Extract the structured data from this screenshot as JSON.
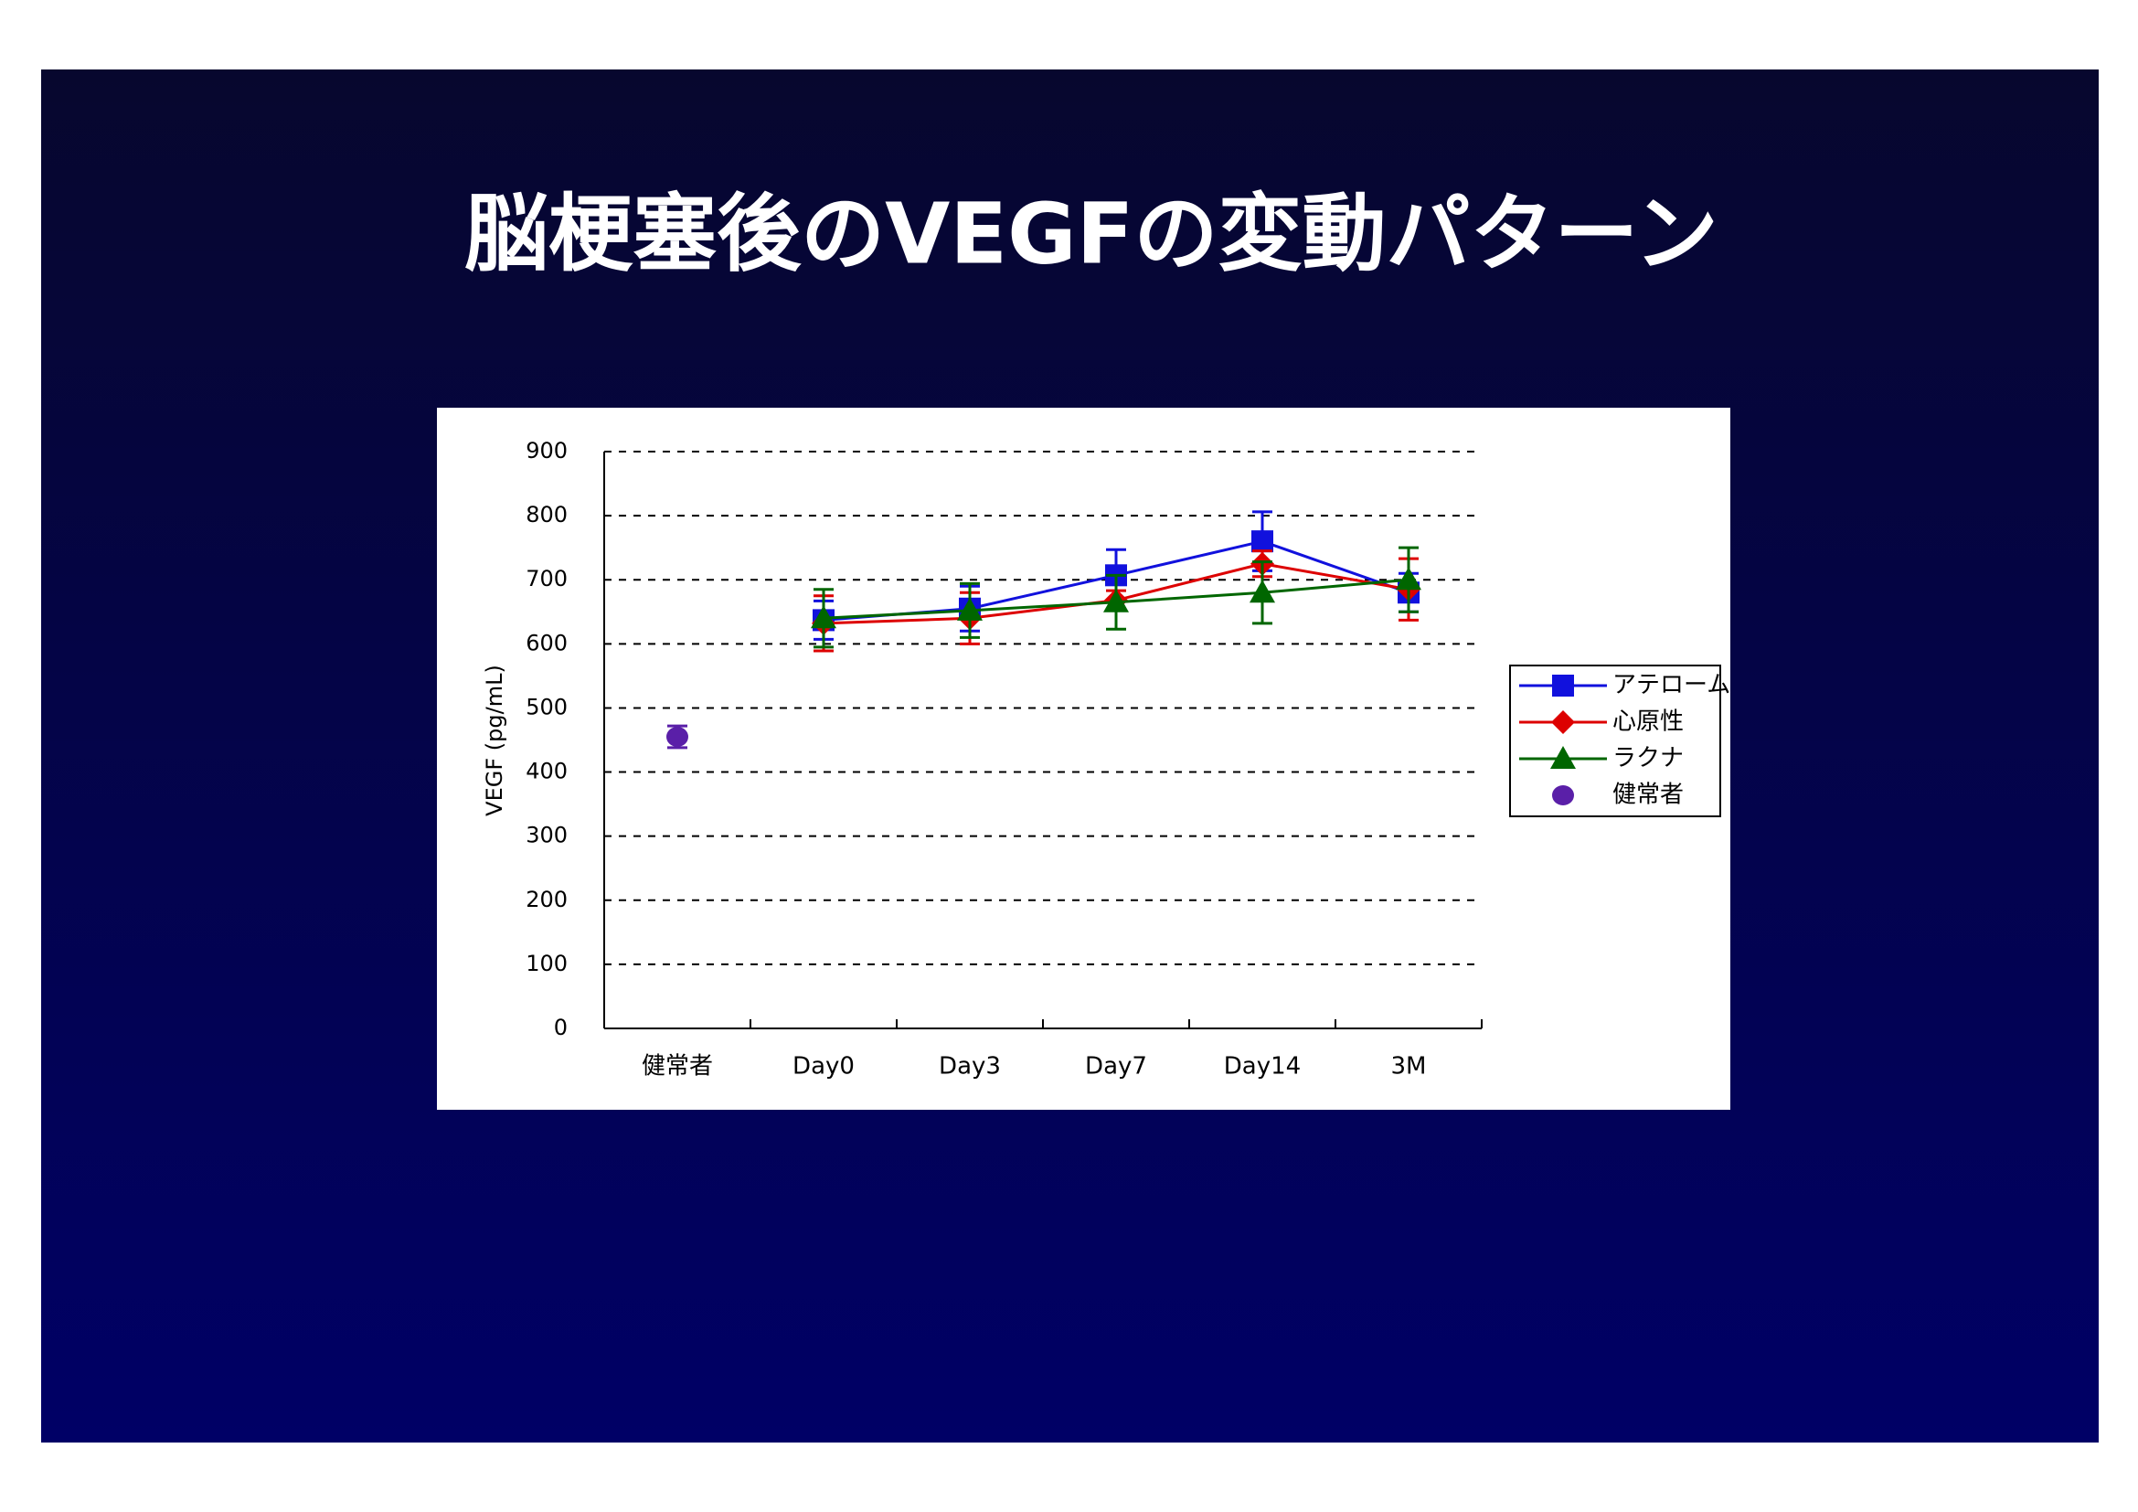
{
  "chart_data": {
    "type": "line",
    "title": "脳梗塞後のVEGFの変動パターン",
    "y_label": "VEGF (pg/mL)",
    "categories": [
      "健常者",
      "Day0",
      "Day3",
      "Day7",
      "Day14",
      "3M"
    ],
    "ylim": [
      0,
      900
    ],
    "yticks": [
      0,
      100,
      200,
      300,
      400,
      500,
      600,
      700,
      800,
      900
    ],
    "grid": true,
    "legend": "right",
    "series": [
      {
        "name": "アテローム",
        "color": "#1111dd",
        "marker": "square",
        "values": [
          null,
          637,
          655,
          707,
          760,
          680
        ],
        "errors": [
          null,
          30,
          35,
          40,
          46,
          30
        ]
      },
      {
        "name": "心原性",
        "color": "#dd0000",
        "marker": "diamond",
        "values": [
          null,
          632,
          640,
          668,
          725,
          685
        ],
        "errors": [
          null,
          43,
          40,
          15,
          20,
          48
        ]
      },
      {
        "name": "ラクナ",
        "color": "#006600",
        "marker": "triangle",
        "values": [
          null,
          640,
          652,
          665,
          680,
          700
        ],
        "errors": [
          null,
          45,
          42,
          42,
          48,
          50
        ]
      },
      {
        "name": "健常者",
        "color": "#5a1fa8",
        "marker": "circle",
        "values": [
          455,
          null,
          null,
          null,
          null,
          null
        ],
        "errors": [
          17,
          null,
          null,
          null,
          null,
          null
        ]
      }
    ]
  }
}
